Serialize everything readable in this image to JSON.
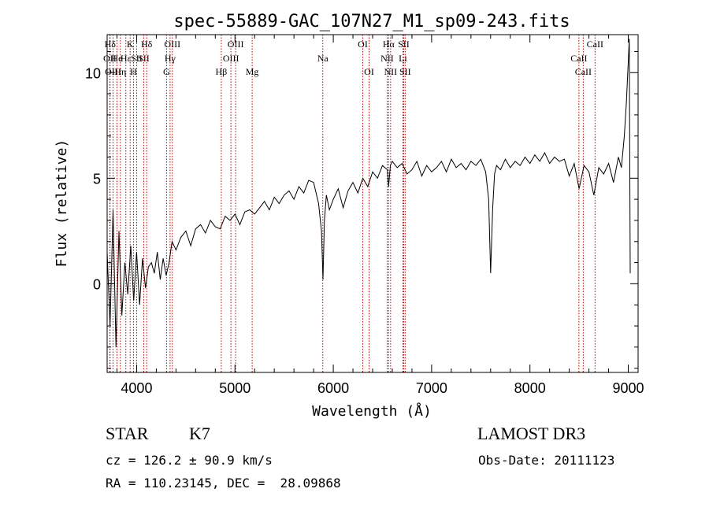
{
  "chart_data": {
    "type": "line",
    "title": "spec-55889-GAC_107N27_M1_sp09-243.fits",
    "xlabel": "Wavelength (Å)",
    "ylabel": "Flux (relative)",
    "xlim": [
      3700,
      9100
    ],
    "ylim": [
      -4.2,
      11.8
    ],
    "xticks": [
      4000,
      5000,
      6000,
      7000,
      8000,
      9000
    ],
    "yticks": [
      0,
      5,
      10
    ],
    "series": [
      {
        "name": "flux",
        "x": [
          3700,
          3730,
          3760,
          3790,
          3820,
          3850,
          3880,
          3910,
          3940,
          3970,
          4000,
          4030,
          4060,
          4090,
          4120,
          4150,
          4180,
          4210,
          4240,
          4270,
          4300,
          4330,
          4360,
          4400,
          4450,
          4500,
          4550,
          4600,
          4650,
          4700,
          4750,
          4800,
          4850,
          4900,
          4950,
          5000,
          5050,
          5100,
          5150,
          5200,
          5250,
          5300,
          5350,
          5400,
          5450,
          5500,
          5550,
          5600,
          5650,
          5700,
          5750,
          5800,
          5850,
          5880,
          5895,
          5910,
          5930,
          5960,
          6000,
          6050,
          6100,
          6150,
          6200,
          6250,
          6300,
          6350,
          6400,
          6450,
          6500,
          6550,
          6563,
          6580,
          6600,
          6650,
          6700,
          6750,
          6800,
          6850,
          6900,
          6950,
          7000,
          7050,
          7100,
          7150,
          7200,
          7250,
          7300,
          7350,
          7400,
          7450,
          7500,
          7550,
          7580,
          7600,
          7620,
          7640,
          7660,
          7700,
          7750,
          7800,
          7850,
          7900,
          7950,
          8000,
          8050,
          8100,
          8150,
          8200,
          8250,
          8300,
          8350,
          8400,
          8450,
          8500,
          8550,
          8600,
          8650,
          8700,
          8750,
          8800,
          8850,
          8900,
          8930,
          8960,
          8980,
          9000,
          9010,
          9020
        ],
        "values": [
          1.5,
          -2.0,
          3.5,
          -3.0,
          2.5,
          -1.5,
          1.0,
          -0.5,
          1.8,
          -0.8,
          1.5,
          -1.0,
          1.2,
          -0.2,
          0.8,
          1.0,
          0.5,
          1.5,
          0.2,
          1.2,
          0.4,
          1.0,
          2.0,
          1.6,
          2.2,
          2.5,
          1.8,
          2.6,
          2.8,
          2.4,
          3.0,
          2.7,
          2.6,
          3.2,
          3.0,
          3.3,
          2.8,
          3.4,
          3.5,
          3.3,
          3.6,
          3.9,
          3.5,
          4.1,
          3.8,
          4.2,
          4.4,
          4.0,
          4.6,
          4.3,
          4.9,
          4.8,
          3.8,
          2.5,
          0.2,
          3.0,
          4.2,
          3.5,
          4.0,
          4.5,
          3.6,
          4.4,
          4.8,
          4.3,
          5.0,
          4.6,
          5.3,
          5.0,
          5.6,
          5.4,
          4.6,
          5.6,
          5.8,
          5.5,
          5.7,
          5.2,
          5.4,
          5.8,
          5.1,
          5.6,
          5.3,
          5.5,
          5.8,
          5.3,
          5.9,
          5.5,
          5.7,
          5.4,
          5.8,
          5.6,
          5.9,
          5.3,
          4.0,
          0.5,
          3.5,
          5.2,
          5.6,
          5.4,
          5.9,
          5.5,
          5.8,
          5.6,
          6.0,
          5.7,
          6.1,
          5.8,
          6.2,
          5.7,
          6.0,
          5.8,
          5.9,
          5.1,
          5.7,
          4.5,
          5.6,
          5.3,
          4.2,
          5.5,
          5.2,
          5.7,
          4.8,
          6.0,
          5.5,
          7.0,
          8.5,
          10.5,
          11.6,
          0.5
        ]
      }
    ],
    "emission_lines": [
      {
        "label": "Hδ",
        "x": 3730,
        "row": 0
      },
      {
        "label": "OII",
        "x": 3727,
        "row": 1
      },
      {
        "label": "OIII",
        "x": 3760,
        "row": 2
      },
      {
        "label": "He",
        "x": 3800,
        "row": 1
      },
      {
        "label": "Hη",
        "x": 3835,
        "row": 2
      },
      {
        "label": "K",
        "x": 3934,
        "row": 0
      },
      {
        "label": "Hε",
        "x": 3890,
        "row": 1
      },
      {
        "label": "SII",
        "x": 4000,
        "row": 1
      },
      {
        "label": "H",
        "x": 3968,
        "row": 2
      },
      {
        "label": "Hδ",
        "x": 4102,
        "row": 0
      },
      {
        "label": "SII",
        "x": 4072,
        "row": 1
      },
      {
        "label": "OIII",
        "x": 4363,
        "row": 0
      },
      {
        "label": "Hγ",
        "x": 4340,
        "row": 1
      },
      {
        "label": "G",
        "x": 4304,
        "row": 2
      },
      {
        "label": "Hβ",
        "x": 4861,
        "row": 2
      },
      {
        "label": "OIII",
        "x": 5007,
        "row": 0
      },
      {
        "label": "OIII",
        "x": 4959,
        "row": 1
      },
      {
        "label": "Mg",
        "x": 5175,
        "row": 2
      },
      {
        "label": "Na",
        "x": 5893,
        "row": 1
      },
      {
        "label": "OI",
        "x": 6300,
        "row": 0
      },
      {
        "label": "OI",
        "x": 6364,
        "row": 2
      },
      {
        "label": "Hα",
        "x": 6563,
        "row": 0
      },
      {
        "label": "SII",
        "x": 6716,
        "row": 0
      },
      {
        "label": "NII",
        "x": 6548,
        "row": 1
      },
      {
        "label": "Li",
        "x": 6708,
        "row": 1
      },
      {
        "label": "NII",
        "x": 6583,
        "row": 2
      },
      {
        "label": "SII",
        "x": 6731,
        "row": 2
      },
      {
        "label": "CaII",
        "x": 8662,
        "row": 0
      },
      {
        "label": "CaII",
        "x": 8498,
        "row": 1
      },
      {
        "label": "CaII",
        "x": 8542,
        "row": 2
      }
    ]
  },
  "info": {
    "class": "STAR",
    "subclass": "K7",
    "survey": "LAMOST DR3",
    "cz": "cz = 126.2 ± 90.9 km/s",
    "obs_date": "Obs-Date: 20111123",
    "coords": "RA = 110.23145, DEC =  28.09868"
  }
}
